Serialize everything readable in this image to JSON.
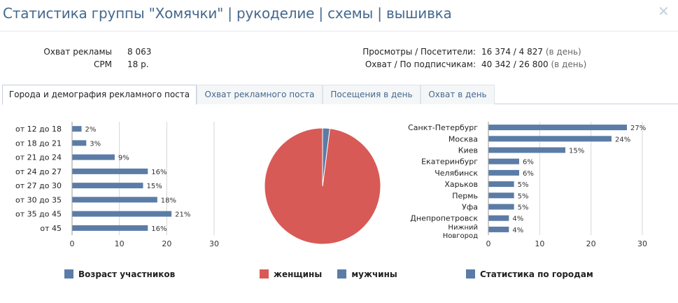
{
  "header": {
    "title": "Статистика группы \"Хомячки\" | рукоделие | схемы | вышивка",
    "close_icon": "close-icon"
  },
  "summary": {
    "reach_label": "Охват рекламы",
    "reach_value": "8 063",
    "cpm_label": "CPM",
    "cpm_value": "18 р.",
    "views_label": "Просмотры / Посетители:",
    "views_value": "16 374 / 4 827",
    "views_unit": "(в день)",
    "subs_label": "Охват / По подписчикам:",
    "subs_value": "40 342 / 26 800",
    "subs_unit": "(в день)"
  },
  "tabs": [
    {
      "label": "Города и демография рекламного поста",
      "active": true
    },
    {
      "label": "Охват рекламного поста",
      "active": false
    },
    {
      "label": "Посещения в день",
      "active": false
    },
    {
      "label": "Охват в день",
      "active": false
    }
  ],
  "colors": {
    "bar": "#5b7ca6",
    "women": "#d85a56",
    "men": "#5b7ca6",
    "grid": "#d5d5d5"
  },
  "chart_data": [
    {
      "type": "bar",
      "orientation": "horizontal",
      "categories": [
        "от 12 до 18",
        "от 18 до 21",
        "от 21 до 24",
        "от 24 до 27",
        "от 27 до 30",
        "от 30 до 35",
        "от 35 до 45",
        "от 45"
      ],
      "values": [
        2,
        3,
        9,
        16,
        15,
        18,
        21,
        16
      ],
      "data_labels": [
        "2%",
        "3%",
        "9%",
        "16%",
        "15%",
        "18%",
        "21%",
        "16%"
      ],
      "xlim": [
        0,
        30
      ],
      "xticks": [
        "0",
        "10",
        "20",
        "30"
      ],
      "grid": true,
      "legend": "Возраст участников"
    },
    {
      "type": "pie",
      "slices": [
        {
          "name": "женщины",
          "value": 98
        },
        {
          "name": "мужчины",
          "value": 2
        }
      ],
      "legend_entries": [
        "женщины",
        "мужчины"
      ]
    },
    {
      "type": "bar",
      "orientation": "horizontal",
      "categories": [
        "Санкт-Петербург",
        "Москва",
        "Киев",
        "Екатеринбург",
        "Челябинск",
        "Харьков",
        "Пермь",
        "Уфа",
        "Днепропетровск",
        "Нижний Новгород"
      ],
      "values": [
        27,
        24,
        15,
        6,
        6,
        5,
        5,
        5,
        4,
        4
      ],
      "data_labels": [
        "27%",
        "24%",
        "15%",
        "6%",
        "6%",
        "5%",
        "5%",
        "5%",
        "4%",
        "4%"
      ],
      "xlim": [
        0,
        30
      ],
      "xticks": [
        "0",
        "10",
        "20",
        "30"
      ],
      "grid": true,
      "legend": "Статистика по городам"
    }
  ]
}
